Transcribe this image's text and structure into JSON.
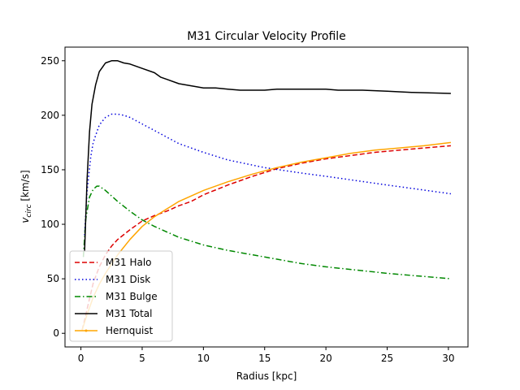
{
  "chart_data": {
    "type": "line",
    "title": "M31 Circular Velocity Profile",
    "xlabel": "Radius [kpc]",
    "ylabel_main": "v",
    "ylabel_sub": "circ",
    "ylabel_unit": " [km/s]",
    "xlim": [
      -1.3,
      31.6
    ],
    "ylim": [
      -12.5,
      262.5
    ],
    "xticks": [
      0,
      5,
      10,
      15,
      20,
      25,
      30
    ],
    "yticks": [
      0,
      50,
      100,
      150,
      200,
      250
    ],
    "grid": false,
    "legend_position": "lower-left",
    "series": [
      {
        "name": "M31 Halo",
        "color": "#dd0000",
        "dash": "dashed",
        "x": [
          0.1,
          0.3,
          0.5,
          1,
          1.5,
          2,
          2.5,
          3,
          4,
          5,
          6,
          7,
          8,
          9,
          10,
          12,
          14,
          16,
          18,
          20,
          22,
          24,
          26,
          28,
          30.2
        ],
        "y": [
          3,
          12,
          22,
          46,
          61,
          72,
          80,
          86,
          95,
          103,
          108,
          112,
          117,
          121,
          127,
          136,
          144,
          151,
          156,
          160,
          163,
          166,
          168,
          170,
          172
        ]
      },
      {
        "name": "M31 Disk",
        "color": "#0000dd",
        "dash": "dotted",
        "x": [
          0.3,
          0.5,
          0.8,
          1,
          1.5,
          2,
          2.5,
          3,
          3.5,
          4,
          5,
          6,
          7,
          8,
          10,
          12,
          15,
          18,
          20,
          25,
          30.2
        ],
        "y": [
          90,
          130,
          162,
          175,
          191,
          198,
          201,
          201,
          200,
          198,
          192,
          186,
          180,
          174,
          166,
          159,
          152,
          147,
          144,
          136,
          128
        ]
      },
      {
        "name": "M31 Bulge",
        "color": "#008800",
        "dash": "dashdot",
        "x": [
          0.2,
          0.4,
          0.7,
          1,
          1.3,
          1.5,
          2,
          2.5,
          3,
          4,
          5,
          6,
          8,
          10,
          12,
          15,
          18,
          20,
          25,
          30.2
        ],
        "y": [
          70,
          105,
          125,
          132,
          135,
          135,
          131,
          126,
          121,
          112,
          104,
          98,
          88,
          81,
          76,
          70,
          64,
          61,
          55,
          50
        ]
      },
      {
        "name": "M31 Total",
        "color": "#000000",
        "dash": "solid",
        "x": [
          0.3,
          0.5,
          0.7,
          0.9,
          1.2,
          1.5,
          2,
          2.5,
          3,
          3.5,
          4,
          5,
          6,
          6.5,
          7,
          8,
          9,
          10,
          11,
          12,
          13,
          14,
          15,
          16,
          17,
          18,
          19,
          20,
          21,
          22,
          23,
          25,
          27,
          30.2
        ],
        "y": [
          75,
          140,
          185,
          210,
          228,
          240,
          248,
          250,
          250,
          248,
          247,
          243,
          239,
          235,
          233,
          229,
          227,
          225,
          225,
          224,
          223,
          223,
          223,
          224,
          224,
          224,
          224,
          224,
          223,
          223,
          223,
          222,
          221,
          220
        ]
      },
      {
        "name": "Hernquist",
        "color": "#ffa500",
        "dash": "solid",
        "marker": "dot",
        "x": [
          0.1,
          0.3,
          0.5,
          1,
          1.5,
          2,
          3,
          4,
          5,
          6,
          7,
          8,
          10,
          12,
          14,
          16,
          18,
          20,
          22,
          24,
          26,
          28,
          30.2
        ],
        "y": [
          3,
          10,
          17,
          33,
          45,
          55,
          72,
          86,
          98,
          107,
          114,
          121,
          131,
          139,
          146,
          152,
          157,
          161,
          165,
          168,
          170,
          172,
          175
        ]
      }
    ]
  }
}
